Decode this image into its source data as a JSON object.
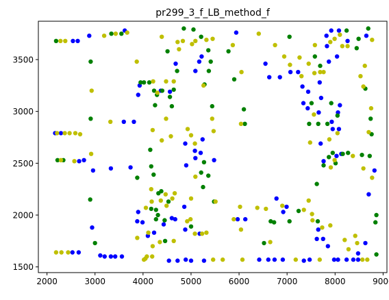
{
  "chart_data": {
    "type": "scatter",
    "title": "pr299_3_f_LB_method_f",
    "xlabel": "",
    "ylabel": "",
    "xlim": [
      1820,
      9080
    ],
    "ylim": [
      1445,
      3870
    ],
    "grid": false,
    "x_ticks": [
      "2000",
      "3000",
      "4000",
      "5000",
      "6000",
      "7000",
      "8000",
      "9000"
    ],
    "y_ticks": [
      "1500",
      "2000",
      "2500",
      "3000",
      "3500"
    ],
    "series": [
      {
        "color": "#0000ff",
        "points": [
          [
            2540,
            3680
          ],
          [
            2640,
            3680
          ],
          [
            2880,
            3730
          ],
          [
            3620,
            3780
          ],
          [
            3930,
            3250
          ],
          [
            3900,
            3160
          ],
          [
            4370,
            3200
          ],
          [
            4560,
            3190
          ],
          [
            4680,
            3460
          ],
          [
            5090,
            3390
          ],
          [
            5170,
            3480
          ],
          [
            5220,
            3530
          ],
          [
            5940,
            3760
          ],
          [
            6550,
            3460
          ],
          [
            6630,
            3330
          ],
          [
            6850,
            3330
          ],
          [
            7070,
            3380
          ],
          [
            7230,
            3380
          ],
          [
            7320,
            3240
          ],
          [
            7440,
            3190
          ],
          [
            7340,
            3080
          ],
          [
            7430,
            3030
          ],
          [
            7680,
            3280
          ],
          [
            7710,
            3130
          ],
          [
            7830,
            3630
          ],
          [
            7820,
            3730
          ],
          [
            7920,
            3780
          ],
          [
            8080,
            3780
          ],
          [
            8650,
            3730
          ],
          [
            8260,
            3680
          ],
          [
            8040,
            3530
          ],
          [
            7870,
            3480
          ],
          [
            2170,
            2790
          ],
          [
            2290,
            2790
          ],
          [
            2960,
            2430
          ],
          [
            3330,
            2450
          ],
          [
            3740,
            2460
          ],
          [
            3810,
            2900
          ],
          [
            3600,
            2900
          ],
          [
            4880,
            2690
          ],
          [
            4900,
            2480
          ],
          [
            5080,
            2620
          ],
          [
            5090,
            2550
          ],
          [
            5200,
            2600
          ],
          [
            5240,
            2730
          ],
          [
            5480,
            2530
          ],
          [
            7660,
            2990
          ],
          [
            7700,
            2690
          ],
          [
            7760,
            2520
          ],
          [
            7930,
            2900
          ],
          [
            7950,
            2830
          ],
          [
            8030,
            2570
          ],
          [
            8130,
            2590
          ],
          [
            8080,
            2830
          ],
          [
            8060,
            2990
          ],
          [
            8100,
            3060
          ],
          [
            2670,
            2520
          ],
          [
            2770,
            2530
          ],
          [
            2940,
            1880
          ],
          [
            3990,
            1930
          ],
          [
            4100,
            1800
          ],
          [
            3880,
            1940
          ],
          [
            3900,
            2030
          ],
          [
            4540,
            1560
          ],
          [
            4720,
            1560
          ],
          [
            4890,
            1570
          ],
          [
            5000,
            1560
          ],
          [
            5270,
            1560
          ],
          [
            5180,
            1820
          ],
          [
            4880,
            1860
          ],
          [
            4600,
            1970
          ],
          [
            4670,
            1960
          ],
          [
            4860,
            2080
          ],
          [
            5970,
            1960
          ],
          [
            6130,
            1960
          ],
          [
            6420,
            1570
          ],
          [
            6610,
            1570
          ],
          [
            6740,
            1570
          ],
          [
            6910,
            1570
          ],
          [
            6780,
            2160
          ],
          [
            6990,
            2080
          ],
          [
            6920,
            2030
          ],
          [
            7350,
            1560
          ],
          [
            7470,
            1570
          ],
          [
            7620,
            1770
          ],
          [
            7650,
            1860
          ],
          [
            7750,
            1770
          ],
          [
            7850,
            1700
          ],
          [
            7980,
            1570
          ],
          [
            8060,
            1570
          ],
          [
            8240,
            1570
          ],
          [
            8380,
            1570
          ],
          [
            8480,
            1570
          ],
          [
            8480,
            1630
          ],
          [
            8630,
            1730
          ],
          [
            8700,
            2200
          ],
          [
            8820,
            2430
          ],
          [
            2530,
            1640
          ],
          [
            2660,
            1640
          ],
          [
            3110,
            1610
          ],
          [
            3200,
            1600
          ],
          [
            3330,
            1600
          ],
          [
            3420,
            1600
          ],
          [
            3560,
            1600
          ],
          [
            4230,
            1830
          ],
          [
            4430,
            1910
          ]
        ]
      },
      {
        "color": "#008000",
        "points": [
          [
            2190,
            3680
          ],
          [
            2910,
            3480
          ],
          [
            3340,
            3750
          ],
          [
            3550,
            3750
          ],
          [
            3950,
            3280
          ],
          [
            4020,
            3280
          ],
          [
            4130,
            3280
          ],
          [
            4230,
            3200
          ],
          [
            4250,
            3060
          ],
          [
            4290,
            3160
          ],
          [
            4400,
            3200
          ],
          [
            4510,
            3580
          ],
          [
            4560,
            3140
          ],
          [
            4600,
            3050
          ],
          [
            4640,
            3210
          ],
          [
            4710,
            3390
          ],
          [
            4850,
            3800
          ],
          [
            5050,
            3790
          ],
          [
            5210,
            3720
          ],
          [
            5360,
            3590
          ],
          [
            5370,
            3390
          ],
          [
            5280,
            3260
          ],
          [
            5410,
            3480
          ],
          [
            5440,
            3050
          ],
          [
            5780,
            3580
          ],
          [
            5900,
            3310
          ],
          [
            6100,
            3020
          ],
          [
            6120,
            2880
          ],
          [
            7050,
            3720
          ],
          [
            7460,
            2880
          ],
          [
            7650,
            2880
          ],
          [
            7510,
            3080
          ],
          [
            7580,
            3530
          ],
          [
            7690,
            3440
          ],
          [
            7920,
            3080
          ],
          [
            7840,
            2880
          ],
          [
            8050,
            2960
          ],
          [
            8240,
            3780
          ],
          [
            8450,
            3610
          ],
          [
            8490,
            3700
          ],
          [
            8630,
            3220
          ],
          [
            8690,
            3800
          ],
          [
            8760,
            2780
          ],
          [
            8740,
            2930
          ],
          [
            8720,
            2570
          ],
          [
            2220,
            2530
          ],
          [
            2340,
            2530
          ],
          [
            2910,
            2930
          ],
          [
            2900,
            2150
          ],
          [
            3000,
            1730
          ],
          [
            4150,
            2630
          ],
          [
            4170,
            2470
          ],
          [
            4220,
            2390
          ],
          [
            4320,
            2210
          ],
          [
            4380,
            2230
          ],
          [
            4170,
            2060
          ],
          [
            4310,
            2000
          ],
          [
            4450,
            1950
          ],
          [
            4460,
            1750
          ],
          [
            4530,
            2130
          ],
          [
            4270,
            2050
          ],
          [
            5000,
            1890
          ],
          [
            5210,
            2410
          ],
          [
            5250,
            2270
          ],
          [
            5270,
            2510
          ],
          [
            5360,
            2380
          ],
          [
            5480,
            2130
          ],
          [
            6520,
            1730
          ],
          [
            6660,
            1940
          ],
          [
            6730,
            1930
          ],
          [
            7050,
            1940
          ],
          [
            7240,
            2040
          ],
          [
            7640,
            1940
          ],
          [
            7620,
            2300
          ],
          [
            7760,
            2480
          ],
          [
            7870,
            2560
          ],
          [
            7950,
            2600
          ],
          [
            8010,
            2500
          ],
          [
            8160,
            2590
          ],
          [
            8270,
            2600
          ],
          [
            8560,
            2580
          ],
          [
            8860,
            2000
          ],
          [
            8840,
            1930
          ],
          [
            8860,
            1620
          ],
          [
            4270,
            1960
          ],
          [
            3880,
            2360
          ]
        ]
      },
      {
        "color": "#bfbf00",
        "points": [
          [
            2280,
            3680
          ],
          [
            2380,
            3680
          ],
          [
            3190,
            3730
          ],
          [
            3430,
            3750
          ],
          [
            3670,
            3760
          ],
          [
            3870,
            3480
          ],
          [
            4210,
            3290
          ],
          [
            4300,
            3180
          ],
          [
            4390,
            3720
          ],
          [
            4480,
            3290
          ],
          [
            4640,
            3290
          ],
          [
            4720,
            3670
          ],
          [
            4750,
            3600
          ],
          [
            4830,
            3680
          ],
          [
            5020,
            3650
          ],
          [
            5090,
            3680
          ],
          [
            5260,
            3250
          ],
          [
            5320,
            3690
          ],
          [
            5450,
            3700
          ],
          [
            5870,
            3640
          ],
          [
            6050,
            3380
          ],
          [
            6410,
            3750
          ],
          [
            6750,
            3640
          ],
          [
            6940,
            3530
          ],
          [
            7060,
            3450
          ],
          [
            7260,
            3520
          ],
          [
            7300,
            3340
          ],
          [
            7450,
            3460
          ],
          [
            7580,
            3640
          ],
          [
            7570,
            3370
          ],
          [
            7690,
            3380
          ],
          [
            7760,
            3380
          ],
          [
            7900,
            3670
          ],
          [
            7990,
            3700
          ],
          [
            8100,
            3740
          ],
          [
            8150,
            3630
          ],
          [
            8260,
            3630
          ],
          [
            8530,
            3340
          ],
          [
            8620,
            3440
          ],
          [
            8590,
            3240
          ],
          [
            8770,
            3690
          ],
          [
            8750,
            3030
          ],
          [
            2210,
            2790
          ],
          [
            2370,
            2790
          ],
          [
            2470,
            2790
          ],
          [
            2590,
            2790
          ],
          [
            2690,
            2780
          ],
          [
            2930,
            3200
          ],
          [
            3320,
            2900
          ],
          [
            4200,
            2820
          ],
          [
            4390,
            2720
          ],
          [
            4480,
            2930
          ],
          [
            4580,
            2760
          ],
          [
            4930,
            2830
          ],
          [
            5000,
            2770
          ],
          [
            5080,
            2690
          ],
          [
            5090,
            2370
          ],
          [
            5440,
            2930
          ],
          [
            5470,
            2810
          ],
          [
            5510,
            2130
          ],
          [
            6040,
            2880
          ],
          [
            7480,
            2700
          ],
          [
            7560,
            2970
          ],
          [
            7880,
            2730
          ],
          [
            7910,
            2460
          ],
          [
            7990,
            2530
          ],
          [
            8050,
            2790
          ],
          [
            8370,
            2570
          ],
          [
            8590,
            2450
          ],
          [
            8700,
            2800
          ],
          [
            8770,
            2360
          ],
          [
            2290,
            2530
          ],
          [
            2570,
            2520
          ],
          [
            2920,
            2590
          ],
          [
            4060,
            2070
          ],
          [
            4170,
            2250
          ],
          [
            4180,
            2130
          ],
          [
            4490,
            2090
          ],
          [
            4660,
            2210
          ],
          [
            4640,
            1750
          ],
          [
            4350,
            1740
          ],
          [
            4190,
            1600
          ],
          [
            4200,
            1700
          ],
          [
            4110,
            1830
          ],
          [
            4370,
            2140
          ],
          [
            4470,
            2200
          ],
          [
            4610,
            2160
          ],
          [
            4920,
            1940
          ],
          [
            4990,
            1960
          ],
          [
            5000,
            2160
          ],
          [
            5080,
            1820
          ],
          [
            5230,
            1820
          ],
          [
            5320,
            1830
          ],
          [
            5460,
            1570
          ],
          [
            5660,
            1570
          ],
          [
            5890,
            1960
          ],
          [
            6040,
            1860
          ],
          [
            6020,
            2080
          ],
          [
            6070,
            1570
          ],
          [
            6380,
            2070
          ],
          [
            6560,
            2060
          ],
          [
            6650,
            1740
          ],
          [
            6900,
            2090
          ],
          [
            7180,
            1570
          ],
          [
            7350,
            2050
          ],
          [
            7450,
            2140
          ],
          [
            7520,
            2010
          ],
          [
            7530,
            1950
          ],
          [
            7680,
            1570
          ],
          [
            7730,
            1880
          ],
          [
            7900,
            1900
          ],
          [
            8200,
            1760
          ],
          [
            8280,
            1670
          ],
          [
            8420,
            1800
          ],
          [
            8460,
            1730
          ],
          [
            8570,
            1570
          ],
          [
            8670,
            1570
          ],
          [
            2440,
            1640
          ],
          [
            2190,
            1640
          ],
          [
            2300,
            1640
          ],
          [
            3880,
            1780
          ],
          [
            4020,
            1570
          ],
          [
            4050,
            1580
          ],
          [
            4080,
            1600
          ]
        ]
      }
    ]
  }
}
